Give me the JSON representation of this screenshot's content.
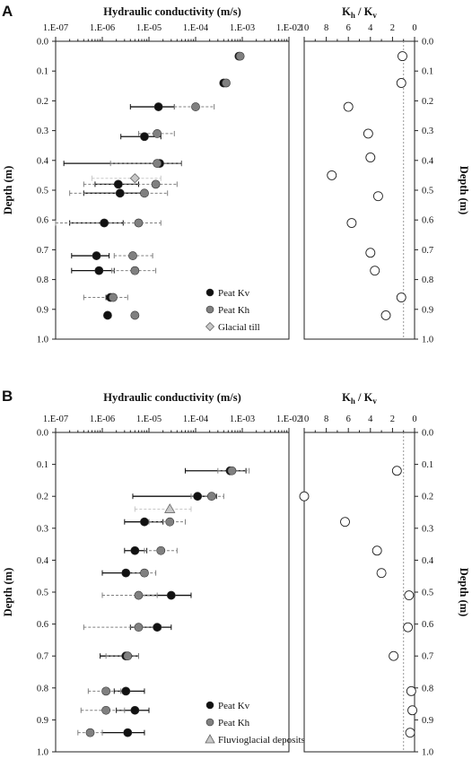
{
  "colors": {
    "kv": "#111111",
    "kh": "#808080",
    "extra": "#c8c8c8",
    "ratio_fill": "#ffffff",
    "axis": "#222222",
    "refline": "#9a9a9a"
  },
  "chart_data": [
    {
      "panel": "A",
      "type": "scatter",
      "xlabel": "Hydraulic conductivity (m/s)",
      "ylabel": "Depth (m)",
      "x_scale": "log",
      "xlim": [
        1e-07,
        0.01
      ],
      "x_ticks": [
        "1.E-07",
        "1.E-06",
        "1.E-05",
        "1.E-04",
        "1.E-03",
        "1.E-02"
      ],
      "ylim": [
        0,
        1.0
      ],
      "y_ticks": [
        "0.0",
        "0.1",
        "0.2",
        "0.3",
        "0.4",
        "0.5",
        "0.6",
        "0.7",
        "0.8",
        "0.9",
        "1.0"
      ],
      "legend_position": "bottom-right",
      "series": [
        {
          "name": "Peat Kv",
          "marker": "circle",
          "color": "#111111",
          "points": [
            {
              "depth": 0.05,
              "k": 0.00085
            },
            {
              "depth": 0.14,
              "k": 0.0004
            },
            {
              "depth": 0.22,
              "k": 1.6e-05,
              "err": [
                4e-06,
                3.5e-05
              ]
            },
            {
              "depth": 0.32,
              "k": 8e-06,
              "err": [
                2.5e-06,
                1.8e-05
              ]
            },
            {
              "depth": 0.41,
              "k": 1.7e-05,
              "err": [
                1.5e-07,
                5e-05
              ]
            },
            {
              "depth": 0.48,
              "k": 2.2e-06,
              "err": [
                7e-07,
                6e-06
              ]
            },
            {
              "depth": 0.51,
              "k": 2.4e-06,
              "err": [
                4e-07,
                7e-06
              ]
            },
            {
              "depth": 0.61,
              "k": 1.1e-06,
              "err": [
                2e-07,
                2.8e-06
              ]
            },
            {
              "depth": 0.72,
              "k": 7.5e-07,
              "err": [
                2.2e-07,
                1.4e-06
              ]
            },
            {
              "depth": 0.77,
              "k": 8.5e-07,
              "err": [
                2.2e-07,
                1.8e-06
              ]
            },
            {
              "depth": 0.86,
              "k": 1.5e-06,
              "err": [
                1.2e-06,
                1.9e-06
              ]
            },
            {
              "depth": 0.92,
              "k": 1.3e-06
            }
          ]
        },
        {
          "name": "Peat Kh",
          "marker": "circle",
          "color": "#808080",
          "points": [
            {
              "depth": 0.05,
              "k": 0.0009
            },
            {
              "depth": 0.14,
              "k": 0.00045
            },
            {
              "depth": 0.22,
              "k": 0.0001,
              "err": [
                3.5e-05,
                0.00025
              ]
            },
            {
              "depth": 0.31,
              "k": 1.5e-05,
              "err": [
                6e-06,
                3.5e-05
              ]
            },
            {
              "depth": 0.41,
              "k": 1.5e-05,
              "err": [
                1.5e-06,
                5e-05
              ]
            },
            {
              "depth": 0.48,
              "k": 1.4e-05,
              "err": [
                4e-07,
                4e-05
              ]
            },
            {
              "depth": 0.51,
              "k": 8e-06,
              "err": [
                2e-07,
                2.5e-05
              ]
            },
            {
              "depth": 0.61,
              "k": 6e-06,
              "err": [
                1e-07,
                1.8e-05
              ]
            },
            {
              "depth": 0.72,
              "k": 4.5e-06,
              "err": [
                1.8e-06,
                1.2e-05
              ]
            },
            {
              "depth": 0.77,
              "k": 5e-06,
              "err": [
                1.6e-06,
                1.4e-05
              ]
            },
            {
              "depth": 0.86,
              "k": 1.7e-06,
              "err": [
                4e-07,
                3.5e-06
              ]
            },
            {
              "depth": 0.92,
              "k": 5e-06
            }
          ]
        },
        {
          "name": "Glacial till",
          "marker": "diamond",
          "color": "#c8c8c8",
          "points": [
            {
              "depth": 0.46,
              "k": 5e-06,
              "err": [
                6e-07,
                1.8e-05
              ]
            }
          ]
        }
      ],
      "ratio_panel": {
        "xlabel": "K_h / K_v",
        "ylabel": "Depth (m)",
        "x_reversed": true,
        "xlim": [
          10,
          0
        ],
        "x_ticks": [
          "10",
          "8",
          "6",
          "4",
          "2",
          "0"
        ],
        "ref_line": 1,
        "points": [
          {
            "depth": 0.05,
            "ratio": 1.1
          },
          {
            "depth": 0.14,
            "ratio": 1.2
          },
          {
            "depth": 0.22,
            "ratio": 6.0
          },
          {
            "depth": 0.31,
            "ratio": 4.2
          },
          {
            "depth": 0.39,
            "ratio": 4.0
          },
          {
            "depth": 0.45,
            "ratio": 7.5
          },
          {
            "depth": 0.52,
            "ratio": 3.3
          },
          {
            "depth": 0.61,
            "ratio": 5.7
          },
          {
            "depth": 0.71,
            "ratio": 4.0
          },
          {
            "depth": 0.77,
            "ratio": 3.6
          },
          {
            "depth": 0.86,
            "ratio": 1.2
          },
          {
            "depth": 0.92,
            "ratio": 2.6
          }
        ]
      }
    },
    {
      "panel": "B",
      "type": "scatter",
      "xlabel": "Hydraulic conductivity (m/s)",
      "ylabel": "Depth (m)",
      "x_scale": "log",
      "xlim": [
        1e-07,
        0.01
      ],
      "x_ticks": [
        "1.E-07",
        "1.E-06",
        "1.E-05",
        "1.E-04",
        "1.E-03",
        "1.E-02"
      ],
      "ylim": [
        0,
        1.0
      ],
      "y_ticks": [
        "0.0",
        "0.1",
        "0.2",
        "0.3",
        "0.4",
        "0.5",
        "0.6",
        "0.7",
        "0.8",
        "0.9",
        "1.0"
      ],
      "legend_position": "bottom-right",
      "series": [
        {
          "name": "Peat Kv",
          "marker": "circle",
          "color": "#111111",
          "points": [
            {
              "depth": 0.12,
              "k": 0.00055,
              "err": [
                6e-05,
                0.0012
              ]
            },
            {
              "depth": 0.2,
              "k": 0.00011,
              "err": [
                4.5e-06,
                0.00028
              ]
            },
            {
              "depth": 0.28,
              "k": 8e-06,
              "err": [
                3e-06,
                2e-05
              ]
            },
            {
              "depth": 0.37,
              "k": 5e-06,
              "err": [
                3e-06,
                9e-06
              ]
            },
            {
              "depth": 0.44,
              "k": 3.2e-06,
              "err": [
                1e-06,
                7e-06
              ]
            },
            {
              "depth": 0.51,
              "k": 3e-05,
              "err": [
                6e-06,
                8e-05
              ]
            },
            {
              "depth": 0.61,
              "k": 1.5e-05,
              "err": [
                4e-06,
                3e-05
              ]
            },
            {
              "depth": 0.7,
              "k": 3.2e-06,
              "err": [
                9e-07,
                6e-06
              ]
            },
            {
              "depth": 0.81,
              "k": 3.2e-06,
              "err": [
                1.8e-06,
                8e-06
              ]
            },
            {
              "depth": 0.87,
              "k": 5e-06,
              "err": [
                2e-06,
                1e-05
              ]
            },
            {
              "depth": 0.94,
              "k": 3.5e-06,
              "err": [
                1e-06,
                8e-06
              ]
            }
          ]
        },
        {
          "name": "Peat Kh",
          "marker": "circle",
          "color": "#808080",
          "points": [
            {
              "depth": 0.12,
              "k": 0.0006,
              "err": [
                0.0003,
                0.0014
              ]
            },
            {
              "depth": 0.2,
              "k": 0.00022,
              "err": [
                8e-05,
                0.0004
              ]
            },
            {
              "depth": 0.28,
              "k": 2.8e-05,
              "err": [
                1e-05,
                6e-05
              ]
            },
            {
              "depth": 0.37,
              "k": 1.8e-05,
              "err": [
                8e-06,
                4e-05
              ]
            },
            {
              "depth": 0.44,
              "k": 8e-06,
              "err": [
                3.5e-06,
                1.4e-05
              ]
            },
            {
              "depth": 0.51,
              "k": 6e-06,
              "err": [
                1e-06,
                1.5e-05
              ]
            },
            {
              "depth": 0.61,
              "k": 6e-06,
              "err": [
                4e-07,
                1.8e-05
              ]
            },
            {
              "depth": 0.7,
              "k": 3.5e-06,
              "err": [
                1.2e-06,
                6e-06
              ]
            },
            {
              "depth": 0.81,
              "k": 1.2e-06,
              "err": [
                5e-07,
                2.5e-06
              ]
            },
            {
              "depth": 0.87,
              "k": 1.2e-06,
              "err": [
                3.5e-07,
                3e-06
              ]
            },
            {
              "depth": 0.94,
              "k": 5.5e-07,
              "err": [
                3e-07,
                1e-06
              ]
            }
          ]
        },
        {
          "name": "Fluvioglacial deposits",
          "marker": "triangle",
          "color": "#c8c8c8",
          "points": [
            {
              "depth": 0.24,
              "k": 2.8e-05,
              "err": [
                5e-06,
                8e-05
              ]
            }
          ]
        }
      ],
      "ratio_panel": {
        "xlabel": "K_h / K_v",
        "ylabel": "Depth (m)",
        "x_reversed": true,
        "xlim": [
          10,
          0
        ],
        "x_ticks": [
          "10",
          "8",
          "6",
          "4",
          "2",
          "0"
        ],
        "ref_line": 1,
        "points": [
          {
            "depth": 0.12,
            "ratio": 1.6
          },
          {
            "depth": 0.2,
            "ratio": 10.0
          },
          {
            "depth": 0.28,
            "ratio": 6.3
          },
          {
            "depth": 0.37,
            "ratio": 3.4
          },
          {
            "depth": 0.44,
            "ratio": 3.0
          },
          {
            "depth": 0.51,
            "ratio": 0.5
          },
          {
            "depth": 0.61,
            "ratio": 0.6
          },
          {
            "depth": 0.7,
            "ratio": 1.9
          },
          {
            "depth": 0.81,
            "ratio": 0.3
          },
          {
            "depth": 0.87,
            "ratio": 0.2
          },
          {
            "depth": 0.94,
            "ratio": 0.4
          }
        ]
      }
    }
  ]
}
